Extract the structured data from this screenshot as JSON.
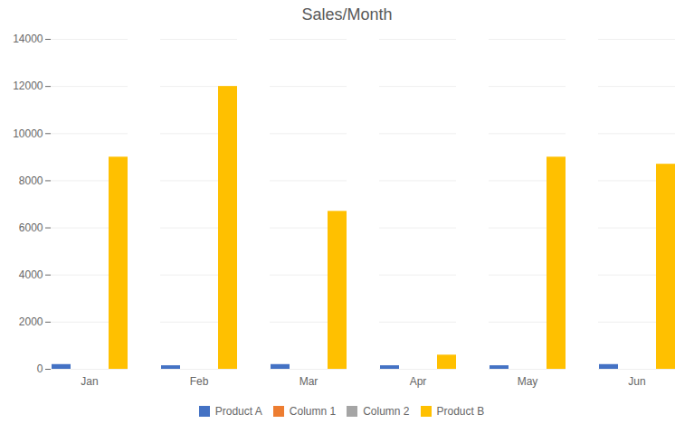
{
  "chart_data": {
    "type": "bar",
    "title": "Sales/Month",
    "categories": [
      "Jan",
      "Feb",
      "Mar",
      "Apr",
      "May",
      "Jun"
    ],
    "series": [
      {
        "name": "Product A",
        "color": "#4472C4",
        "values": [
          200,
          150,
          200,
          150,
          150,
          200
        ]
      },
      {
        "name": "Column 1",
        "color": "#ED7D31",
        "values": [
          0,
          0,
          0,
          0,
          0,
          0
        ]
      },
      {
        "name": "Column 2",
        "color": "#A5A5A5",
        "values": [
          0,
          0,
          0,
          0,
          0,
          0
        ]
      },
      {
        "name": "Product B",
        "color": "#FFC000",
        "values": [
          9000,
          12000,
          6700,
          600,
          9000,
          8700
        ]
      }
    ],
    "ylim": [
      0,
      14000
    ],
    "yticks": [
      0,
      2000,
      4000,
      6000,
      8000,
      10000,
      12000,
      14000
    ],
    "grid": true,
    "legend": "bottom"
  }
}
